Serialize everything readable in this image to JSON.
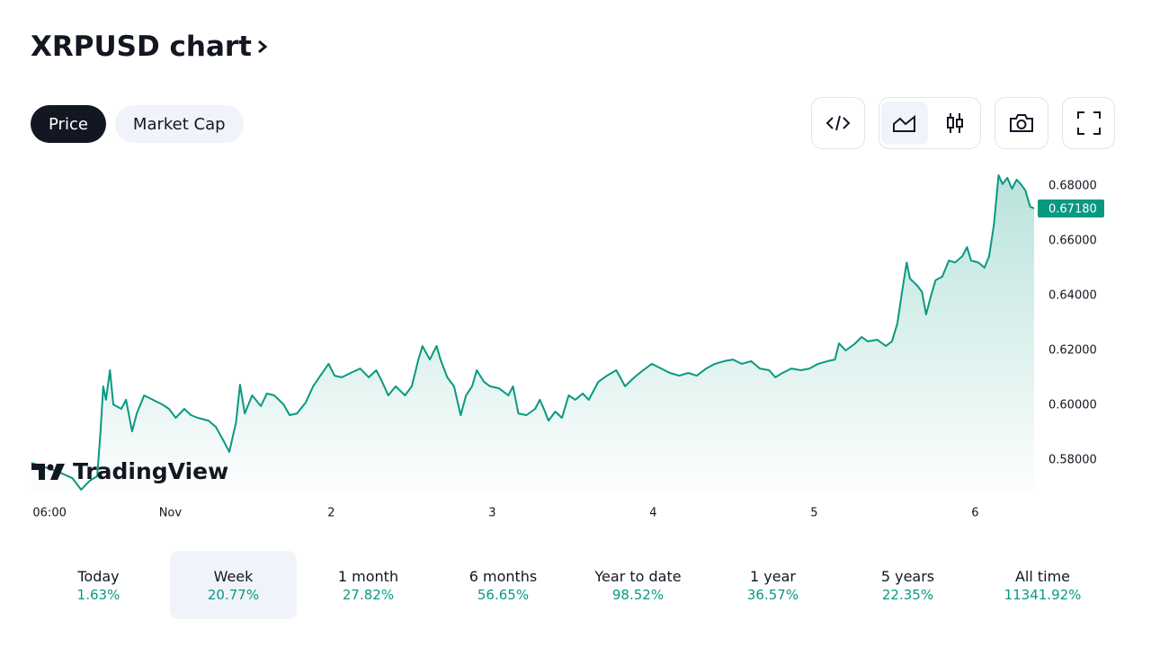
{
  "title": "XRPUSD chart",
  "tabs": [
    {
      "label": "Price",
      "selected": true
    },
    {
      "label": "Market Cap"
    }
  ],
  "watermark": "TradingView",
  "chart_data": {
    "type": "line",
    "color": "#089981",
    "xlim": [
      3.3,
      152.8
    ],
    "ylim": [
      0.5682,
      0.6872
    ],
    "xticks": [
      {
        "value": 6,
        "label": "06:00"
      },
      {
        "value": 24,
        "label": "Nov"
      },
      {
        "value": 48,
        "label": "2"
      },
      {
        "value": 72,
        "label": "3"
      },
      {
        "value": 96,
        "label": "4"
      },
      {
        "value": 120,
        "label": "5"
      },
      {
        "value": 144,
        "label": "6"
      }
    ],
    "yticks": [
      {
        "value": 0.58,
        "label": "0.58000"
      },
      {
        "value": 0.6,
        "label": "0.60000"
      },
      {
        "value": 0.62,
        "label": "0.62000"
      },
      {
        "value": 0.64,
        "label": "0.64000"
      },
      {
        "value": 0.66,
        "label": "0.66000"
      },
      {
        "value": 0.68,
        "label": "0.68000"
      }
    ],
    "last_price": {
      "value": 0.6718,
      "label": "0.67180"
    },
    "x": [
      3.3,
      5.3,
      7.3,
      9.4,
      10.7,
      12.0,
      13.1,
      13.6,
      14.0,
      14.4,
      15.0,
      15.5,
      16.7,
      17.4,
      18.3,
      19.0,
      20.1,
      21.4,
      22.8,
      23.8,
      24.8,
      26.1,
      27.1,
      28.1,
      29.7,
      30.8,
      31.9,
      32.8,
      33.8,
      34.4,
      35.1,
      36.2,
      37.5,
      38.4,
      39.5,
      40.9,
      41.8,
      42.9,
      44.2,
      45.3,
      46.2,
      47.6,
      48.5,
      49.6,
      50.9,
      52.3,
      53.6,
      54.7,
      55.6,
      56.5,
      57.6,
      59.0,
      60.0,
      61.0,
      61.6,
      62.7,
      63.7,
      64.3,
      65.3,
      66.3,
      67.3,
      68.1,
      69.0,
      69.7,
      70.8,
      71.7,
      73.0,
      74.4,
      75.1,
      75.9,
      77.1,
      78.4,
      79.1,
      79.7,
      80.4,
      81.4,
      82.4,
      83.4,
      84.4,
      85.5,
      86.4,
      87.8,
      89.1,
      90.5,
      91.8,
      93.2,
      94.5,
      95.8,
      97.2,
      98.5,
      99.9,
      101.2,
      102.5,
      103.9,
      105.2,
      106.6,
      107.9,
      109.2,
      110.6,
      111.9,
      113.3,
      114.2,
      115.3,
      116.6,
      118.0,
      119.3,
      120.6,
      122.0,
      123.1,
      123.7,
      124.7,
      126.0,
      127.1,
      128.0,
      129.4,
      130.7,
      131.6,
      132.4,
      133.1,
      133.8,
      134.3,
      135.4,
      136.1,
      136.7,
      137.4,
      138.1,
      139.1,
      140.1,
      141.0,
      142.1,
      142.8,
      143.4,
      144.5,
      145.4,
      146.1,
      146.8,
      147.5,
      148.1,
      148.8,
      149.5,
      150.2,
      150.8,
      151.5,
      152.2,
      152.8
    ],
    "values": [
      0.579,
      0.5774,
      0.5757,
      0.5734,
      0.5692,
      0.5725,
      0.5741,
      0.5905,
      0.6069,
      0.602,
      0.6128,
      0.6003,
      0.5987,
      0.602,
      0.5905,
      0.597,
      0.6036,
      0.602,
      0.6003,
      0.5987,
      0.5954,
      0.5987,
      0.5964,
      0.5954,
      0.5944,
      0.5921,
      0.5872,
      0.583,
      0.5938,
      0.6075,
      0.597,
      0.6036,
      0.5997,
      0.6043,
      0.6036,
      0.6003,
      0.5964,
      0.597,
      0.601,
      0.6069,
      0.6102,
      0.6151,
      0.6108,
      0.6102,
      0.6118,
      0.6134,
      0.6102,
      0.6128,
      0.6085,
      0.6036,
      0.6069,
      0.6036,
      0.6069,
      0.6167,
      0.6216,
      0.6167,
      0.6216,
      0.6167,
      0.6102,
      0.6069,
      0.5964,
      0.6036,
      0.6069,
      0.6128,
      0.6085,
      0.6069,
      0.6062,
      0.6036,
      0.6069,
      0.597,
      0.5964,
      0.5987,
      0.602,
      0.5987,
      0.5944,
      0.5977,
      0.5954,
      0.6036,
      0.602,
      0.6043,
      0.602,
      0.6085,
      0.6108,
      0.6128,
      0.6069,
      0.6102,
      0.6128,
      0.6151,
      0.6134,
      0.6118,
      0.6108,
      0.6118,
      0.6108,
      0.6134,
      0.6151,
      0.6161,
      0.6167,
      0.6151,
      0.6161,
      0.6134,
      0.6128,
      0.6102,
      0.6118,
      0.6134,
      0.6128,
      0.6134,
      0.6151,
      0.6161,
      0.6167,
      0.6226,
      0.62,
      0.6223,
      0.6249,
      0.6233,
      0.6239,
      0.6216,
      0.6233,
      0.6298,
      0.6413,
      0.6521,
      0.6462,
      0.6436,
      0.6413,
      0.6331,
      0.6397,
      0.6456,
      0.6469,
      0.6528,
      0.6521,
      0.6544,
      0.6577,
      0.6528,
      0.6521,
      0.6502,
      0.6544,
      0.6659,
      0.6839,
      0.6807,
      0.683,
      0.679,
      0.6823,
      0.6807,
      0.6784,
      0.6725,
      0.6718
    ]
  },
  "periods": [
    {
      "label": "Today",
      "change": "1.63%"
    },
    {
      "label": "Week",
      "change": "20.77%",
      "selected": true
    },
    {
      "label": "1 month",
      "change": "27.82%"
    },
    {
      "label": "6 months",
      "change": "56.65%"
    },
    {
      "label": "Year to date",
      "change": "98.52%"
    },
    {
      "label": "1 year",
      "change": "36.57%"
    },
    {
      "label": "5 years",
      "change": "22.35%"
    },
    {
      "label": "All time",
      "change": "11341.92%"
    }
  ]
}
